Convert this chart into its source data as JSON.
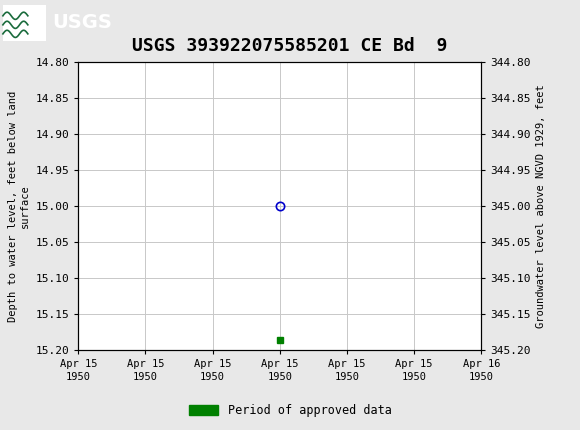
{
  "title": "USGS 393922075585201 CE Bd  9",
  "title_fontsize": 13,
  "background_color": "#e8e8e8",
  "plot_bg_color": "#ffffff",
  "header_color": "#1a6b3c",
  "ylabel_left": "Depth to water level, feet below land\nsurface",
  "ylabel_right": "Groundwater level above NGVD 1929, feet",
  "ylim_left": [
    14.8,
    15.2
  ],
  "ylim_right": [
    344.8,
    345.2
  ],
  "yticks_left": [
    14.8,
    14.85,
    14.9,
    14.95,
    15.0,
    15.05,
    15.1,
    15.15,
    15.2
  ],
  "yticks_right": [
    344.8,
    344.85,
    344.9,
    344.95,
    345.0,
    345.05,
    345.1,
    345.15,
    345.2
  ],
  "xlim": [
    0,
    6
  ],
  "xtick_positions": [
    0,
    1,
    2,
    3,
    4,
    5,
    6
  ],
  "xtick_labels": [
    "Apr 15\n1950",
    "Apr 15\n1950",
    "Apr 15\n1950",
    "Apr 15\n1950",
    "Apr 15\n1950",
    "Apr 15\n1950",
    "Apr 16\n1950"
  ],
  "point_x": 3.0,
  "point_y_depth": 15.0,
  "point_color": "#0000cc",
  "green_square_x": 3.0,
  "green_square_y": 15.185,
  "green_color": "#008000",
  "legend_label": "Period of approved data",
  "font_family": "monospace",
  "grid_color": "#c8c8c8",
  "tick_fontsize": 8,
  "label_fontsize": 7.5
}
